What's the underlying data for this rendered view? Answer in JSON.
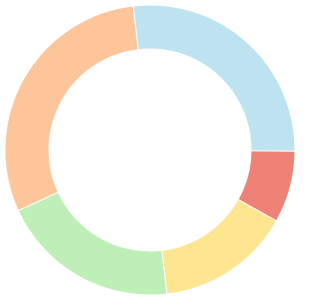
{
  "chart_data": {
    "type": "doughnut",
    "values": [
      27,
      8,
      15,
      20,
      30
    ],
    "colors": [
      "#bde2f0",
      "#ee8277",
      "#fee58f",
      "#bdefb6",
      "#fdc59a"
    ]
  }
}
